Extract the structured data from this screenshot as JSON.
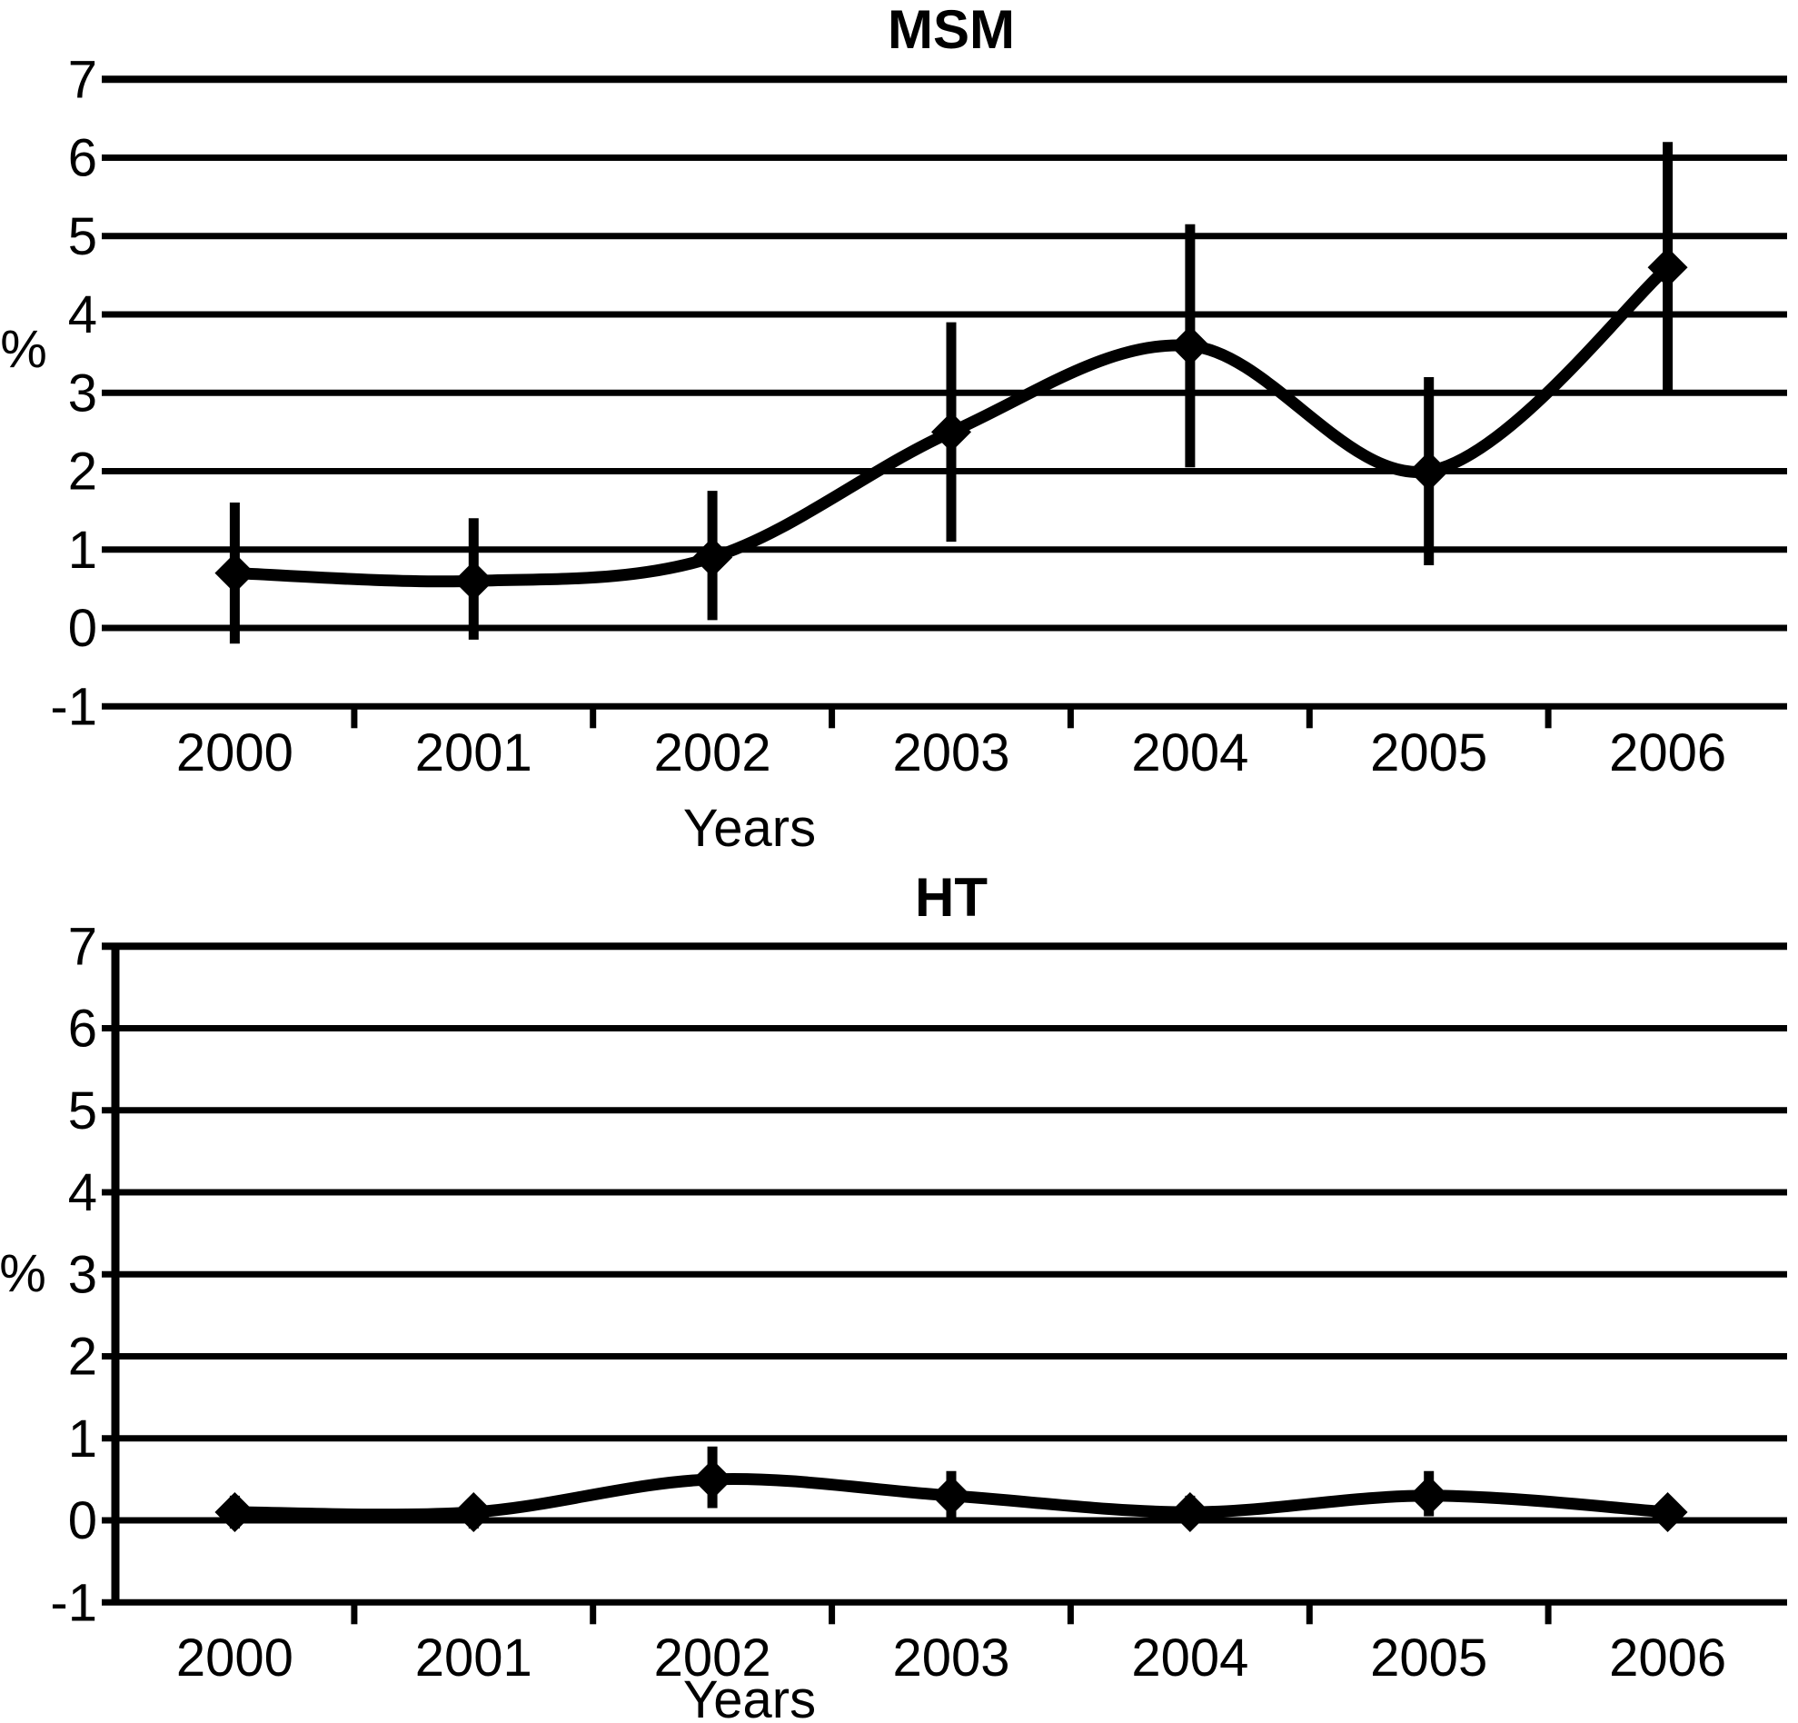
{
  "figure_background": "#ffffff",
  "ink_color": "#000000",
  "chart_data": [
    {
      "type": "line",
      "title": "MSM",
      "xlabel": "Years",
      "ylabel": "%",
      "categories": [
        "2000",
        "2001",
        "2002",
        "2003",
        "2004",
        "2005",
        "2006"
      ],
      "series": [
        {
          "name": "MSM",
          "values": [
            0.7,
            0.6,
            0.9,
            2.5,
            3.6,
            2.0,
            4.6
          ],
          "ci_low": [
            -0.2,
            -0.15,
            0.1,
            1.1,
            2.05,
            0.8,
            3.0
          ],
          "ci_high": [
            1.6,
            1.4,
            1.75,
            3.9,
            5.15,
            3.2,
            6.2
          ]
        }
      ],
      "ylim": [
        -1,
        7
      ],
      "yticks": [
        7,
        6,
        5,
        4,
        3,
        2,
        1,
        0,
        -1
      ],
      "grid": true,
      "legend": false,
      "marker": "diamond",
      "error_bars": true,
      "y_axis_line": false,
      "line_color": "#000000"
    },
    {
      "type": "line",
      "title": "HT",
      "xlabel": "Years",
      "ylabel": "%",
      "categories": [
        "2000",
        "2001",
        "2002",
        "2003",
        "2004",
        "2005",
        "2006"
      ],
      "series": [
        {
          "name": "HT",
          "values": [
            0.1,
            0.1,
            0.5,
            0.3,
            0.1,
            0.3,
            0.1
          ],
          "ci_low": [
            -0.1,
            -0.1,
            0.15,
            0.0,
            -0.05,
            0.05,
            0.0
          ],
          "ci_high": [
            0.3,
            0.25,
            0.9,
            0.6,
            0.3,
            0.6,
            0.2
          ]
        }
      ],
      "ylim": [
        -1,
        7
      ],
      "yticks": [
        7,
        6,
        5,
        4,
        3,
        2,
        1,
        0,
        -1
      ],
      "grid": true,
      "legend": false,
      "marker": "diamond",
      "error_bars": true,
      "y_axis_line": true,
      "line_color": "#000000"
    }
  ]
}
